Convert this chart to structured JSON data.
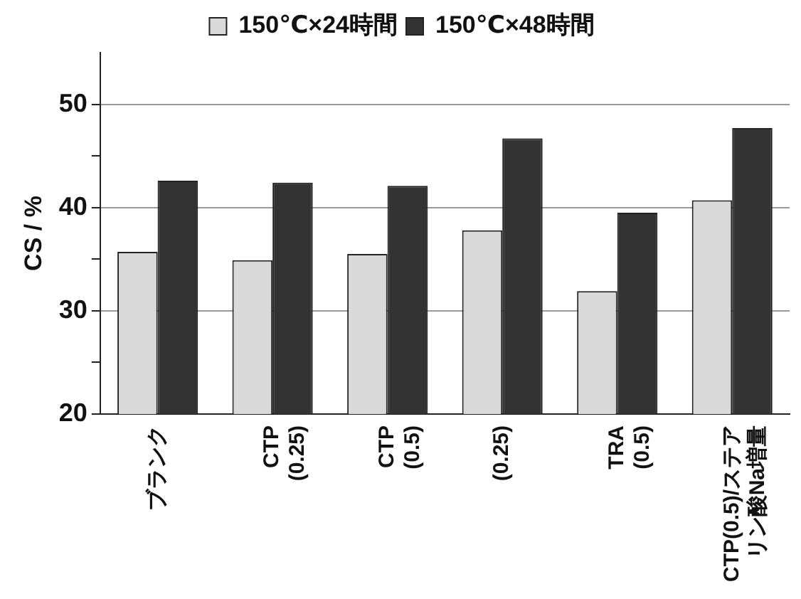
{
  "chart_data": {
    "type": "bar",
    "ylabel": "CS / %",
    "categories": [
      "ブランク",
      "CTP\n(0.25)",
      "CTP\n(0.5)",
      "(0.25)",
      "TRA\n(0.5)",
      "CTP(0.5)/ステアリン酸Na増量"
    ],
    "series": [
      {
        "name": "150℃×24時間",
        "color": "#d9d9d9",
        "values": [
          35.7,
          34.9,
          35.5,
          37.8,
          31.9,
          40.7
        ]
      },
      {
        "name": "150℃×48時間",
        "color": "#333333",
        "values": [
          42.6,
          42.4,
          42.1,
          46.7,
          39.5,
          47.7
        ]
      }
    ],
    "ylim": [
      20,
      55
    ],
    "yticks": [
      20,
      {
        "value": 25,
        "label": null
      },
      30,
      {
        "value": 35,
        "label": null
      },
      40,
      {
        "value": 45,
        "label": null
      },
      50
    ],
    "grid": "y",
    "legend": "top"
  }
}
